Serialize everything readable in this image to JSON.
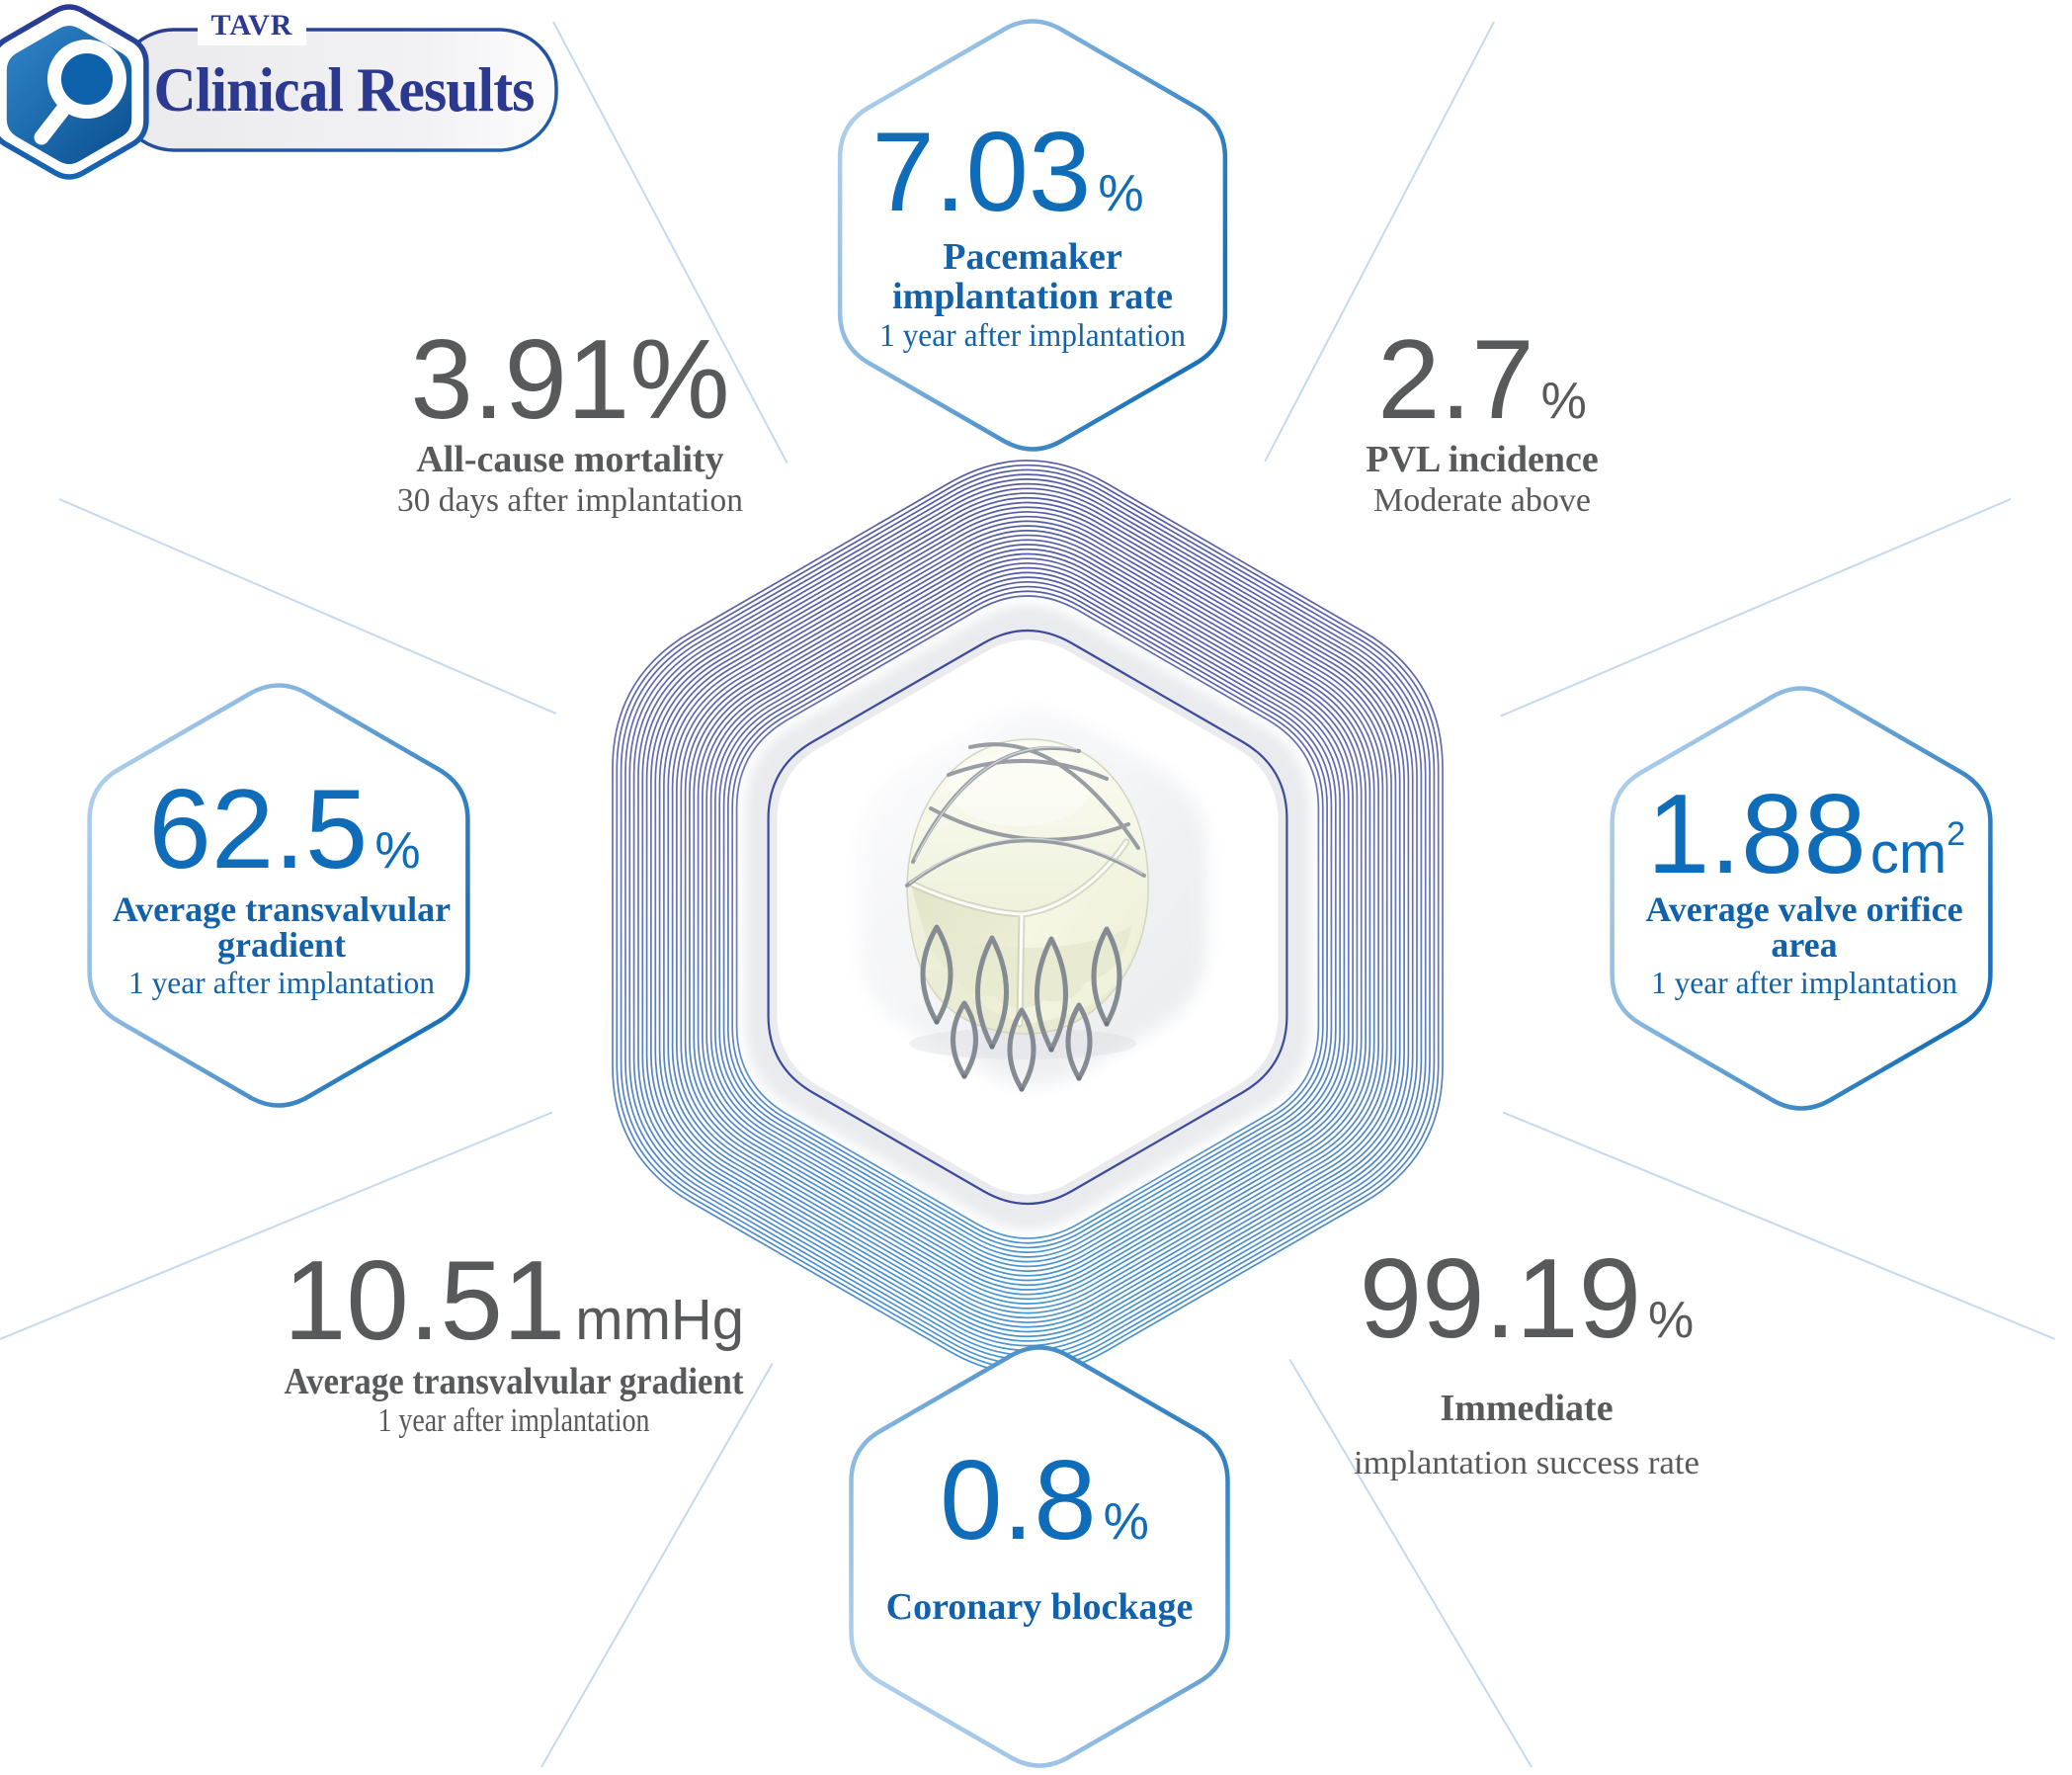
{
  "header": {
    "eyebrow": "TAVR",
    "title": "Clinical Results",
    "logo_icon": "magnifier-hexagon-logo"
  },
  "center": {
    "illustration": "tavr-valve-prosthesis"
  },
  "colors": {
    "value_blue": "#0f6cb8",
    "label_blue": "#1262ab",
    "title_navy": "#2b3990",
    "text_gray": "#58595b",
    "hex_stroke_light": "#bcd7ef",
    "hex_stroke_dark": "#1b72b8",
    "ring_indigo": "#4a52a0",
    "ring_blue": "#3f8ecb"
  },
  "stats": {
    "pacemaker": {
      "value": "7.03",
      "unit": "%",
      "label_line1": "Pacemaker",
      "label_line2": "implantation rate",
      "subtext": "1 year after implantation"
    },
    "mortality": {
      "value": "3.91%",
      "label_line1": "All-cause mortality",
      "subtext": "30 days after implantation"
    },
    "pvl": {
      "value": "2.7",
      "unit": "%",
      "label_line1": "PVL incidence",
      "subtext": "Moderate above"
    },
    "transvalvular_gradient_pct": {
      "value": "62.5",
      "unit": "%",
      "label_line1": "Average transvalvular",
      "label_line2": "gradient",
      "subtext": "1 year after implantation"
    },
    "valve_orifice_area": {
      "value": "1.88",
      "unit": "cm",
      "unit_sup": "2",
      "label_line1": "Average valve orifice",
      "label_line2": "area",
      "subtext": "1 year after implantation"
    },
    "transvalvular_gradient_mmhg": {
      "value": "10.51",
      "unit": "mmHg",
      "label_line1": "Average transvalvular gradient",
      "subtext": "1 year after implantation"
    },
    "implantation_success": {
      "value": "99.19",
      "unit": "%",
      "label_line1": "Immediate",
      "subtext": "implantation success rate"
    },
    "coronary_blockage": {
      "value": "0.8",
      "unit": "%",
      "label_line1": "Coronary blockage"
    }
  }
}
